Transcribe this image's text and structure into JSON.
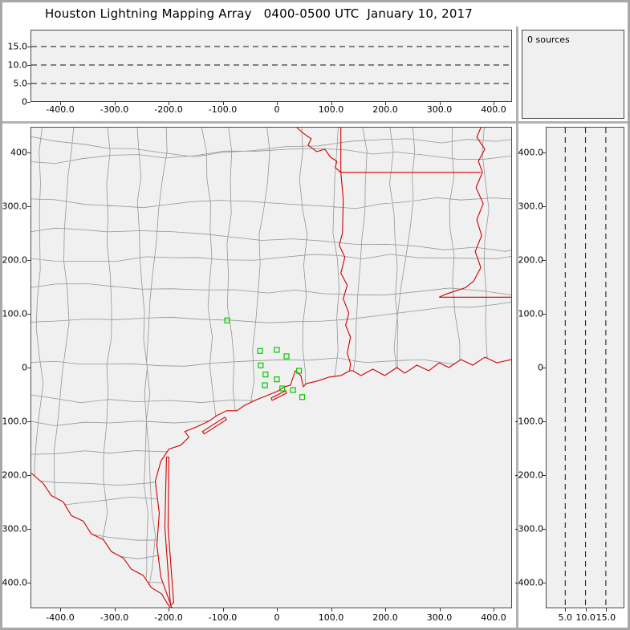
{
  "title": "Houston Lightning Mapping Array   0400-0500 UTC  January 10, 2017",
  "sources": {
    "count": 0,
    "label": "0 sources"
  },
  "colors": {
    "state_boundary": "#cc0000",
    "county_boundary": "#959595",
    "station_marker": "#00c800",
    "plot_background": "#f0f0f0",
    "grid_line": "#111111",
    "frame": "#a8a8a8"
  },
  "panels": {
    "altitude_ew": {
      "y_tick_labels": [
        "15.0",
        "10.0",
        "5.0",
        "0"
      ],
      "x_tick_labels": [
        "-400.0",
        "-300.0",
        "-200.0",
        "-100.0",
        "0",
        "100.0",
        "200.0",
        "300.0",
        "400.0"
      ]
    },
    "map": {
      "y_tick_labels": [
        "400",
        "300.0",
        "200.0",
        "100.0",
        "0",
        "-100.0",
        "-200.0",
        "-300.0",
        "-400.0"
      ],
      "x_tick_labels": [
        "-400.0",
        "-300.0",
        "-200.0",
        "-100.0",
        "0",
        "100.0",
        "200.0",
        "300.0",
        "400.0"
      ]
    },
    "altitude_ns": {
      "x_tick_labels": [
        "5.0",
        "10.0",
        "15.0"
      ],
      "y_tick_labels": [
        "400.0",
        "300.0",
        "200.0",
        "100.0",
        "0",
        "-100.0",
        "-200.0",
        "-300.0",
        "-400.0"
      ]
    }
  },
  "chart_data": [
    {
      "id": "altitude-vs-eastwest",
      "type": "scatter",
      "x_ticks": [
        -400,
        -300,
        -200,
        -100,
        0,
        100,
        200,
        300,
        400
      ],
      "y_ticks": [
        0,
        5,
        10,
        15
      ],
      "xlim": [
        -455,
        434
      ],
      "ylim": [
        0,
        19.6
      ],
      "grid": "dashed horizontal lines at 5, 10, 15 km altitude",
      "points": [],
      "source_count": 0
    },
    {
      "id": "plan-view-map",
      "type": "scatter",
      "x_ticks": [
        -400,
        -300,
        -200,
        -100,
        0,
        100,
        200,
        300,
        400
      ],
      "y_ticks": [
        400,
        300,
        200,
        100,
        0,
        -100,
        -200,
        -300,
        -400
      ],
      "xlim": [
        -455,
        434
      ],
      "ylim": [
        -448,
        448
      ],
      "points": [],
      "source_count": 0,
      "station_locations_km": [
        [
          -92,
          88
        ],
        [
          -31,
          31
        ],
        [
          0,
          33
        ],
        [
          18,
          21
        ],
        [
          -30,
          4
        ],
        [
          -21,
          -13
        ],
        [
          -22,
          -33
        ],
        [
          0,
          -22
        ],
        [
          10,
          -39
        ],
        [
          41,
          -6
        ],
        [
          30,
          -42
        ],
        [
          47,
          -55
        ]
      ],
      "overlays": [
        "county boundaries (gray)",
        "state borders and coastline (red)",
        "LMA station markers (green open squares)"
      ]
    },
    {
      "id": "altitude-vs-northsouth",
      "type": "scatter",
      "x_ticks": [
        5,
        10,
        15
      ],
      "y_ticks": [
        400,
        300,
        200,
        100,
        0,
        -100,
        -200,
        -300,
        -400
      ],
      "xlim": [
        0,
        19.6
      ],
      "ylim": [
        -448,
        448
      ],
      "grid": "dashed vertical lines at 5, 10, 15 km altitude",
      "points": [],
      "source_count": 0
    }
  ]
}
